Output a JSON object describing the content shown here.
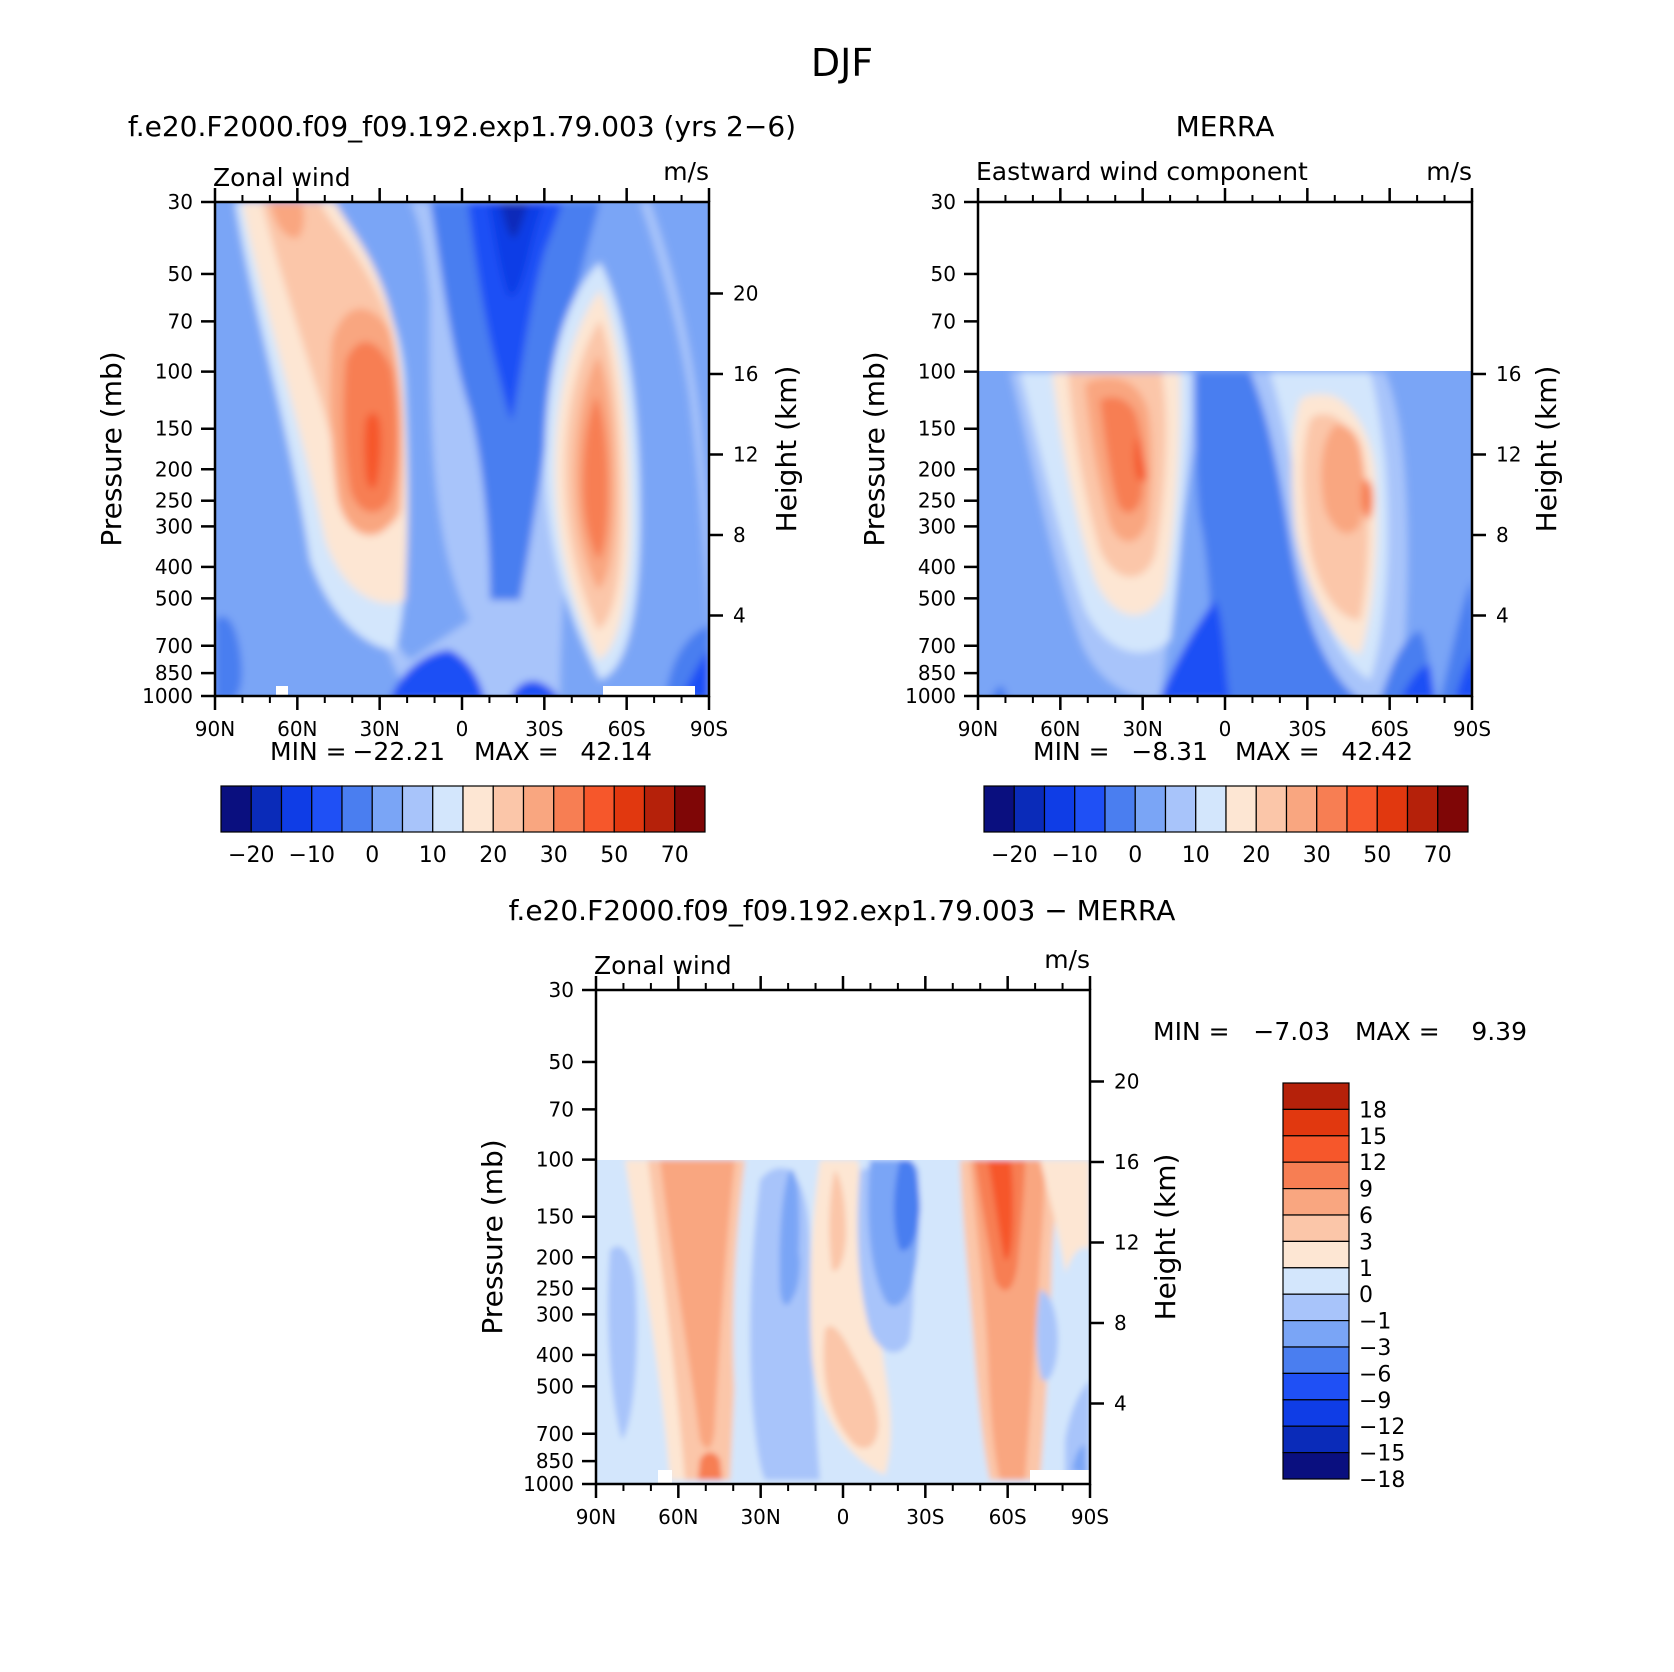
{
  "figure": {
    "title": "DJF"
  },
  "colors": {
    "full": [
      "#0a0f7f",
      "#0a2bb9",
      "#0f3de6",
      "#1f50f5",
      "#4a7ef0",
      "#7aa5f6",
      "#a8c4fa",
      "#d3e6fc",
      "#fde6d3",
      "#fbc6a9",
      "#f9a680",
      "#f77e53",
      "#f6572b",
      "#e1380f",
      "#b5210a",
      "#7f0606"
    ],
    "zero_index": 7
  },
  "chart_data": [
    {
      "type": "heatmap",
      "panel_title": "f.e20.F2000.f09_f09.192.exp1.79.003 (yrs 2−6)",
      "left_label": "Zonal wind",
      "units_label": "m/s",
      "ylabel": "Pressure (mb)",
      "y2label": "Height (km)",
      "x_ticks": [
        "90N",
        "60N",
        "30N",
        "0",
        "30S",
        "60S",
        "90S"
      ],
      "y_ticks": [
        "30",
        "50",
        "70",
        "100",
        "150",
        "200",
        "250",
        "300",
        "400",
        "500",
        "700",
        "850",
        "1000"
      ],
      "y2_ticks": [
        "20",
        "16",
        "12",
        "8",
        "4"
      ],
      "stats": {
        "min_label": "MIN =",
        "min": "−22.21",
        "max_label": "MAX =",
        "max": "42.14"
      },
      "colorbar": {
        "orientation": "horizontal",
        "labels": [
          "−20",
          "−10",
          "0",
          "10",
          "20",
          "30",
          "50",
          "70"
        ]
      },
      "data_top_mb": 30
    },
    {
      "type": "heatmap",
      "panel_title": "MERRA",
      "left_label": "Eastward wind component",
      "units_label": "m/s",
      "ylabel": "Pressure (mb)",
      "y2label": "Height (km)",
      "x_ticks": [
        "90N",
        "60N",
        "30N",
        "0",
        "30S",
        "60S",
        "90S"
      ],
      "y_ticks": [
        "30",
        "50",
        "70",
        "100",
        "150",
        "200",
        "250",
        "300",
        "400",
        "500",
        "700",
        "850",
        "1000"
      ],
      "y2_ticks": [
        "16",
        "12",
        "8",
        "4"
      ],
      "stats": {
        "min_label": "MIN =",
        "min": "−8.31",
        "max_label": "MAX =",
        "max": "42.42"
      },
      "colorbar": {
        "orientation": "horizontal",
        "labels": [
          "−20",
          "−10",
          "0",
          "10",
          "20",
          "30",
          "50",
          "70"
        ]
      },
      "data_top_mb": 100
    },
    {
      "type": "heatmap",
      "panel_title": "f.e20.F2000.f09_f09.192.exp1.79.003 − MERRA",
      "left_label": "Zonal wind",
      "units_label": "m/s",
      "ylabel": "Pressure (mb)",
      "y2label": "Height (km)",
      "x_ticks": [
        "90N",
        "60N",
        "30N",
        "0",
        "30S",
        "60S",
        "90S"
      ],
      "y_ticks": [
        "30",
        "50",
        "70",
        "100",
        "150",
        "200",
        "250",
        "300",
        "400",
        "500",
        "700",
        "850",
        "1000"
      ],
      "y2_ticks": [
        "20",
        "16",
        "12",
        "8",
        "4"
      ],
      "stats": {
        "min_label": "MIN =",
        "min": "−7.03",
        "max_label": "MAX =",
        "max": "9.39"
      },
      "colorbar": {
        "orientation": "vertical",
        "labels": [
          "18",
          "15",
          "12",
          "9",
          "6",
          "3",
          "1",
          "0",
          "−1",
          "−3",
          "−6",
          "−9",
          "−12",
          "−15",
          "−18"
        ]
      },
      "data_top_mb": 100
    }
  ]
}
